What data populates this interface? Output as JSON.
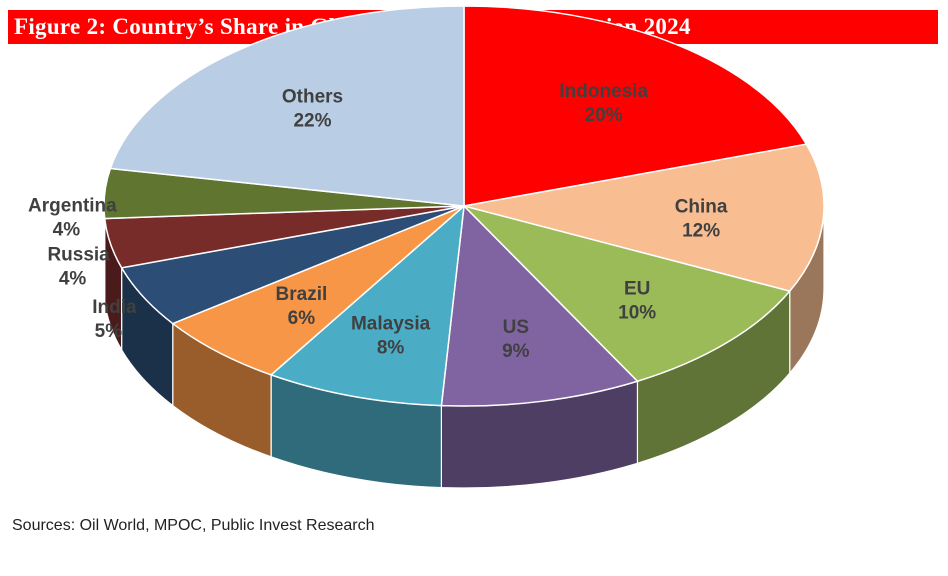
{
  "header": {
    "title": "Figure 2: Country’s Share in Global Oils and Fats Production 2024",
    "bar_color": "#ff0000"
  },
  "footer": {
    "source": "Sources: Oil World, MPOC, Public Invest Research"
  },
  "chart_data": {
    "type": "pie",
    "title": "Figure 2: Country’s Share in Global Oils and Fats Production 2024",
    "unit": "%",
    "three_d": true,
    "slices": [
      {
        "label": "Indonesia",
        "value": 20,
        "value_label": "20%",
        "color": "#ff0000"
      },
      {
        "label": "China",
        "value": 12,
        "value_label": "12%",
        "color": "#f8be91"
      },
      {
        "label": "EU",
        "value": 10,
        "value_label": "10%",
        "color": "#9bbb59"
      },
      {
        "label": "US",
        "value": 9,
        "value_label": "9%",
        "color": "#8064a2"
      },
      {
        "label": "Malaysia",
        "value": 8,
        "value_label": "8%",
        "color": "#4bacc6"
      },
      {
        "label": "Brazil",
        "value": 6,
        "value_label": "6%",
        "color": "#f79646"
      },
      {
        "label": "India",
        "value": 5,
        "value_label": "5%",
        "color": "#2c4d75"
      },
      {
        "label": "Russia",
        "value": 4,
        "value_label": "4%",
        "color": "#772c2a"
      },
      {
        "label": "Argentina",
        "value": 4,
        "value_label": "4%",
        "color": "#5f7530"
      },
      {
        "label": "Others",
        "value": 22,
        "value_label": "22%",
        "color": "#b9cde5"
      }
    ]
  }
}
